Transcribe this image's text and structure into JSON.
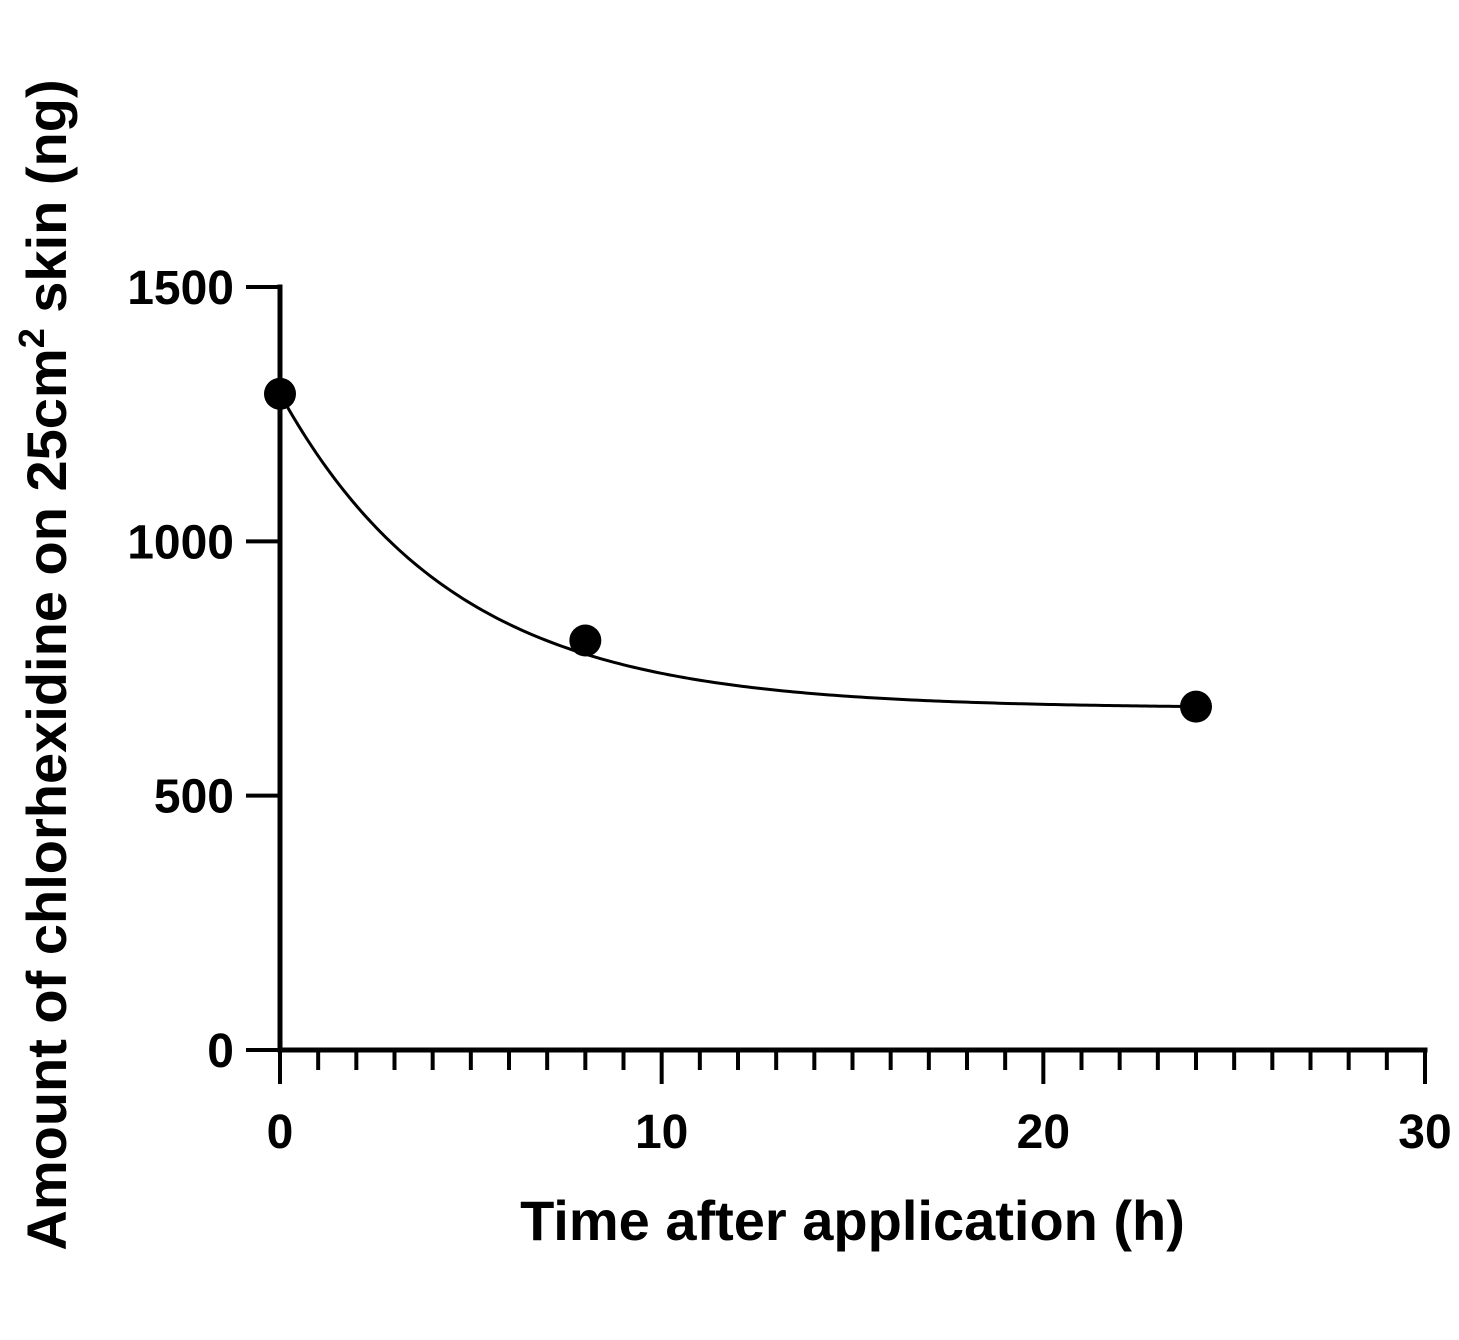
{
  "chart_data": {
    "type": "scatter",
    "xlabel": "Time after application (h)",
    "ylabel_parts": {
      "main": "Amount of chlorhexidine on 25cm",
      "sup": "2",
      "tail": " skin (ng)"
    },
    "xlim": [
      0,
      30
    ],
    "ylim": [
      0,
      1500
    ],
    "x_major_ticks": [
      0,
      10,
      20,
      30
    ],
    "x_minor_step": 1,
    "y_major_ticks": [
      0,
      500,
      1000,
      1500
    ],
    "x_tick_labels": [
      "0",
      "10",
      "20",
      "30"
    ],
    "y_tick_labels": [
      "0",
      "500",
      "1000",
      "1500"
    ],
    "grid": false,
    "series": [
      {
        "x": [
          0,
          8,
          24
        ],
        "y": [
          1290,
          805,
          675
        ],
        "marker_color": "#000000"
      }
    ],
    "fit": {
      "model": "one-phase exponential decay",
      "plateau": 672,
      "span": 618,
      "k": 0.22,
      "x_range": [
        0,
        24
      ]
    }
  }
}
